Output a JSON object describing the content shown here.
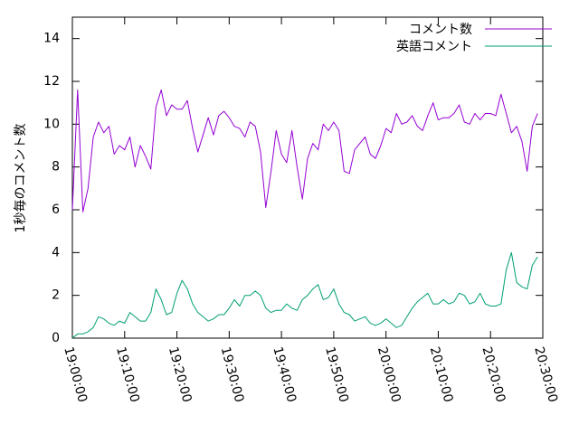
{
  "chart_data": {
    "type": "line",
    "ylabel": "1秒毎のコメント数",
    "xlabel": "",
    "ylim": [
      0,
      15
    ],
    "y_ticks": [
      0,
      2,
      4,
      6,
      8,
      10,
      12,
      14
    ],
    "x_range_minutes": [
      0,
      90
    ],
    "x_tick_labels": [
      "19:00:00",
      "19:10:00",
      "19:20:00",
      "19:30:00",
      "19:40:00",
      "19:50:00",
      "20:00:00",
      "20:10:00",
      "20:20:00",
      "20:30:00"
    ],
    "legend_position": "top-right",
    "colors": {
      "series1": "#9400d3",
      "series2": "#009e73"
    },
    "series": [
      {
        "name": "コメント数",
        "x": [
          0,
          1,
          2,
          3,
          4,
          5,
          6,
          7,
          8,
          9,
          10,
          11,
          12,
          13,
          14,
          15,
          16,
          17,
          18,
          19,
          20,
          21,
          22,
          23,
          24,
          25,
          26,
          27,
          28,
          29,
          30,
          31,
          32,
          33,
          34,
          35,
          36,
          37,
          38,
          39,
          40,
          41,
          42,
          43,
          44,
          45,
          46,
          47,
          48,
          49,
          50,
          51,
          52,
          53,
          54,
          55,
          56,
          57,
          58,
          59,
          60,
          61,
          62,
          63,
          64,
          65,
          66,
          67,
          68,
          69,
          70,
          71,
          72,
          73,
          74,
          75,
          76,
          77,
          78,
          79,
          80,
          81,
          82,
          83,
          84,
          85,
          86,
          87,
          88,
          89
        ],
        "values": [
          6.0,
          11.6,
          5.9,
          7.0,
          9.4,
          10.1,
          9.6,
          9.9,
          8.6,
          9.0,
          8.8,
          9.4,
          8.0,
          9.0,
          8.5,
          7.9,
          10.8,
          11.6,
          10.4,
          10.9,
          10.7,
          10.7,
          11.1,
          9.8,
          8.7,
          9.5,
          10.3,
          9.5,
          10.4,
          10.6,
          10.3,
          9.9,
          9.8,
          9.4,
          10.1,
          9.9,
          8.7,
          6.1,
          7.8,
          9.7,
          8.6,
          8.2,
          9.7,
          8.0,
          6.5,
          8.4,
          9.1,
          8.8,
          10.0,
          9.7,
          10.1,
          9.7,
          7.8,
          7.7,
          8.8,
          9.1,
          9.4,
          8.6,
          8.4,
          9.0,
          9.8,
          9.6,
          10.5,
          10.0,
          10.1,
          10.4,
          9.9,
          9.7,
          10.4,
          11.0,
          10.2,
          10.3,
          10.3,
          10.5,
          10.9,
          10.1,
          10.0,
          10.5,
          10.2,
          10.5,
          10.5,
          10.4,
          11.4,
          10.5,
          9.6,
          9.9,
          9.2,
          7.8,
          9.9,
          10.5
        ]
      },
      {
        "name": "英語コメント",
        "x": [
          0,
          1,
          2,
          3,
          4,
          5,
          6,
          7,
          8,
          9,
          10,
          11,
          12,
          13,
          14,
          15,
          16,
          17,
          18,
          19,
          20,
          21,
          22,
          23,
          24,
          25,
          26,
          27,
          28,
          29,
          30,
          31,
          32,
          33,
          34,
          35,
          36,
          37,
          38,
          39,
          40,
          41,
          42,
          43,
          44,
          45,
          46,
          47,
          48,
          49,
          50,
          51,
          52,
          53,
          54,
          55,
          56,
          57,
          58,
          59,
          60,
          61,
          62,
          63,
          64,
          65,
          66,
          67,
          68,
          69,
          70,
          71,
          72,
          73,
          74,
          75,
          76,
          77,
          78,
          79,
          80,
          81,
          82,
          83,
          84,
          85,
          86,
          87,
          88,
          89
        ],
        "values": [
          0.0,
          0.2,
          0.2,
          0.3,
          0.5,
          1.0,
          0.9,
          0.7,
          0.6,
          0.8,
          0.7,
          1.2,
          1.0,
          0.8,
          0.8,
          1.2,
          2.3,
          1.8,
          1.1,
          1.2,
          2.1,
          2.7,
          2.3,
          1.6,
          1.2,
          1.0,
          0.8,
          0.9,
          1.1,
          1.1,
          1.4,
          1.8,
          1.5,
          2.0,
          2.0,
          2.2,
          2.0,
          1.4,
          1.2,
          1.3,
          1.3,
          1.6,
          1.4,
          1.3,
          1.8,
          2.0,
          2.3,
          2.5,
          1.8,
          1.9,
          2.3,
          1.6,
          1.2,
          1.1,
          0.8,
          0.9,
          1.0,
          0.7,
          0.6,
          0.7,
          0.9,
          0.7,
          0.5,
          0.6,
          1.0,
          1.4,
          1.7,
          1.9,
          2.1,
          1.6,
          1.6,
          1.8,
          1.6,
          1.7,
          2.1,
          2.0,
          1.6,
          1.7,
          2.1,
          1.6,
          1.5,
          1.5,
          1.6,
          3.2,
          4.0,
          2.6,
          2.4,
          2.3,
          3.4,
          3.8
        ]
      }
    ]
  }
}
